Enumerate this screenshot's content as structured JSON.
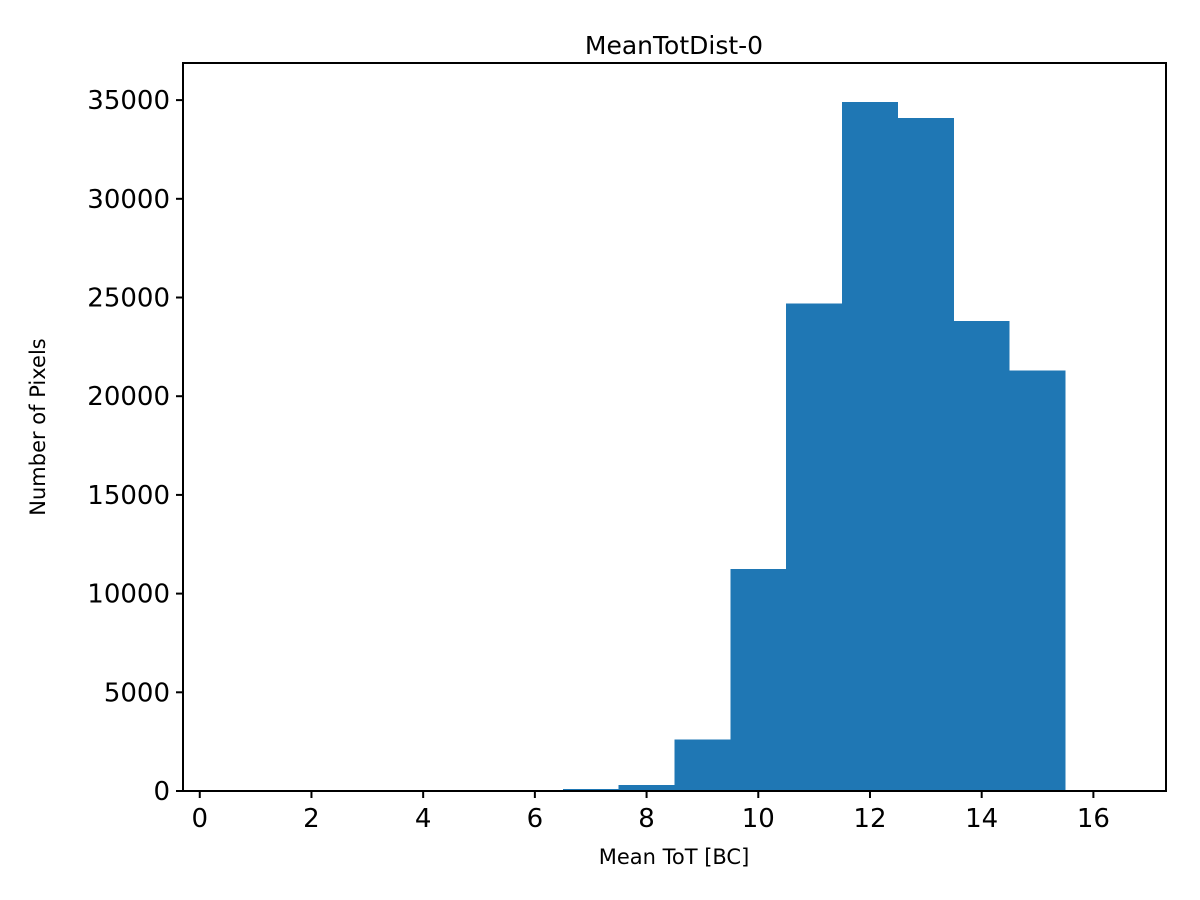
{
  "figure": {
    "background_color": "#ffffff",
    "axis_color": "#000000",
    "text_color": "#000000"
  },
  "chart_data": {
    "type": "bar",
    "subtype": "histogram",
    "title": "MeanTotDist-0",
    "xlabel": "Mean ToT [BC]",
    "ylabel": "Number of Pixels",
    "bar_color": "#1f77b4",
    "grid": false,
    "legend_position": "none",
    "bin_width": 1.0,
    "bin_centers": [
      1,
      2,
      3,
      4,
      5,
      6,
      7,
      8,
      9,
      10,
      11,
      12,
      13,
      14,
      15,
      16
    ],
    "values": [
      0,
      0,
      0,
      0,
      0,
      0,
      90,
      300,
      2600,
      11250,
      24700,
      34900,
      34100,
      23800,
      21300,
      0
    ],
    "x_ticks": [
      0,
      2,
      4,
      6,
      8,
      10,
      12,
      14,
      16
    ],
    "y_ticks": [
      0,
      5000,
      10000,
      15000,
      20000,
      25000,
      30000,
      35000
    ],
    "xlim": [
      -0.3,
      17.3
    ],
    "ylim": [
      0,
      36880
    ]
  }
}
